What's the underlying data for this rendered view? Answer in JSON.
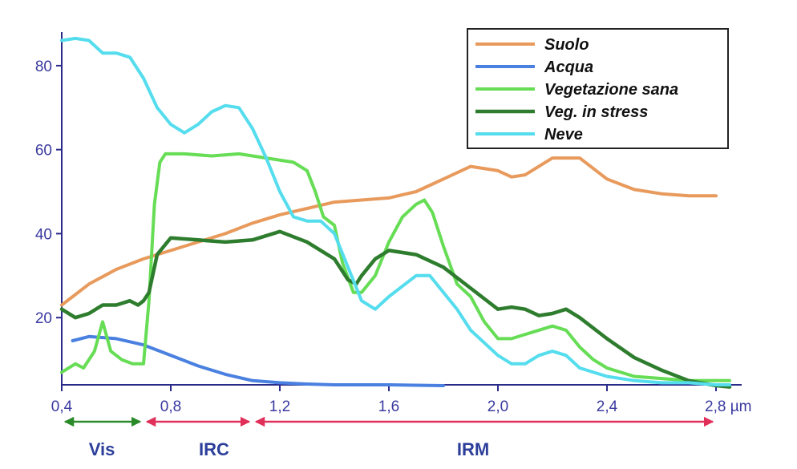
{
  "chart_data": {
    "type": "line",
    "title": "",
    "xlabel": "",
    "ylabel": "",
    "x_unit": "µm",
    "xlim": [
      0.4,
      2.8
    ],
    "ylim": [
      4,
      88
    ],
    "x_ticks": [
      0.4,
      0.8,
      1.2,
      1.6,
      2.0,
      2.4,
      2.8
    ],
    "x_tick_labels": [
      "0,4",
      "0,8",
      "1,2",
      "1,6",
      "2,0",
      "2,4",
      "2,8 µm"
    ],
    "y_ticks": [
      20,
      40,
      60,
      80
    ],
    "y_tick_labels": [
      "20",
      "40",
      "60",
      "80"
    ],
    "grid": false,
    "legend_position": "top-right",
    "series": [
      {
        "name": "Suolo",
        "color": "#e89a5c",
        "points": [
          [
            0.4,
            23
          ],
          [
            0.5,
            28
          ],
          [
            0.6,
            31.5
          ],
          [
            0.7,
            34
          ],
          [
            0.8,
            36
          ],
          [
            0.9,
            38
          ],
          [
            1.0,
            40
          ],
          [
            1.1,
            42.5
          ],
          [
            1.2,
            44.5
          ],
          [
            1.3,
            46
          ],
          [
            1.4,
            47.5
          ],
          [
            1.5,
            48
          ],
          [
            1.6,
            48.5
          ],
          [
            1.7,
            50
          ],
          [
            1.8,
            53
          ],
          [
            1.9,
            56
          ],
          [
            2.0,
            55
          ],
          [
            2.05,
            53.5
          ],
          [
            2.1,
            54
          ],
          [
            2.2,
            58
          ],
          [
            2.3,
            58
          ],
          [
            2.4,
            53
          ],
          [
            2.5,
            50.5
          ],
          [
            2.6,
            49.5
          ],
          [
            2.7,
            49
          ],
          [
            2.8,
            49
          ]
        ]
      },
      {
        "name": "Acqua",
        "color": "#4a80e0",
        "points": [
          [
            0.44,
            14.5
          ],
          [
            0.5,
            15.5
          ],
          [
            0.6,
            15
          ],
          [
            0.7,
            13.5
          ],
          [
            0.8,
            11
          ],
          [
            0.9,
            8.5
          ],
          [
            1.0,
            6.5
          ],
          [
            1.1,
            5
          ],
          [
            1.2,
            4.5
          ],
          [
            1.3,
            4.2
          ],
          [
            1.4,
            4
          ],
          [
            1.6,
            4
          ],
          [
            1.8,
            3.8
          ]
        ]
      },
      {
        "name": "Vegetazione sana",
        "color": "#66dd55",
        "points": [
          [
            0.4,
            7
          ],
          [
            0.45,
            9
          ],
          [
            0.48,
            8
          ],
          [
            0.52,
            12
          ],
          [
            0.55,
            19
          ],
          [
            0.58,
            12
          ],
          [
            0.62,
            10
          ],
          [
            0.66,
            9
          ],
          [
            0.7,
            9
          ],
          [
            0.72,
            24
          ],
          [
            0.74,
            47
          ],
          [
            0.76,
            57
          ],
          [
            0.78,
            59
          ],
          [
            0.85,
            59
          ],
          [
            0.95,
            58.5
          ],
          [
            1.05,
            59
          ],
          [
            1.15,
            58
          ],
          [
            1.25,
            57
          ],
          [
            1.3,
            55
          ],
          [
            1.33,
            50
          ],
          [
            1.36,
            44
          ],
          [
            1.4,
            42
          ],
          [
            1.43,
            33
          ],
          [
            1.47,
            26
          ],
          [
            1.5,
            26
          ],
          [
            1.55,
            30
          ],
          [
            1.6,
            38
          ],
          [
            1.65,
            44
          ],
          [
            1.7,
            47
          ],
          [
            1.73,
            48
          ],
          [
            1.76,
            45
          ],
          [
            1.8,
            37
          ],
          [
            1.85,
            28
          ],
          [
            1.9,
            25
          ],
          [
            1.95,
            19
          ],
          [
            2.0,
            15
          ],
          [
            2.05,
            15
          ],
          [
            2.1,
            16
          ],
          [
            2.15,
            17
          ],
          [
            2.2,
            18
          ],
          [
            2.25,
            17
          ],
          [
            2.3,
            13
          ],
          [
            2.35,
            10
          ],
          [
            2.4,
            8
          ],
          [
            2.5,
            6
          ],
          [
            2.6,
            5.5
          ],
          [
            2.7,
            5
          ],
          [
            2.8,
            5
          ],
          [
            2.85,
            5
          ]
        ]
      },
      {
        "name": "Veg. in stress",
        "color": "#2e7d2e",
        "points": [
          [
            0.4,
            22
          ],
          [
            0.45,
            20
          ],
          [
            0.5,
            21
          ],
          [
            0.55,
            23
          ],
          [
            0.6,
            23
          ],
          [
            0.65,
            24
          ],
          [
            0.68,
            23
          ],
          [
            0.7,
            24
          ],
          [
            0.72,
            26
          ],
          [
            0.75,
            35
          ],
          [
            0.8,
            39
          ],
          [
            0.9,
            38.5
          ],
          [
            1.0,
            38
          ],
          [
            1.1,
            38.5
          ],
          [
            1.2,
            40.5
          ],
          [
            1.3,
            38
          ],
          [
            1.4,
            34
          ],
          [
            1.45,
            29
          ],
          [
            1.48,
            28
          ],
          [
            1.5,
            30
          ],
          [
            1.55,
            34
          ],
          [
            1.6,
            36
          ],
          [
            1.7,
            35
          ],
          [
            1.8,
            32
          ],
          [
            1.9,
            27
          ],
          [
            2.0,
            22
          ],
          [
            2.05,
            22.5
          ],
          [
            2.1,
            22
          ],
          [
            2.15,
            20.5
          ],
          [
            2.2,
            21
          ],
          [
            2.25,
            22
          ],
          [
            2.3,
            20
          ],
          [
            2.4,
            15
          ],
          [
            2.5,
            10.5
          ],
          [
            2.6,
            7.5
          ],
          [
            2.7,
            5
          ],
          [
            2.8,
            3.8
          ],
          [
            2.85,
            3.5
          ]
        ]
      },
      {
        "name": "Neve",
        "color": "#55ddee",
        "points": [
          [
            0.4,
            86
          ],
          [
            0.45,
            86.5
          ],
          [
            0.5,
            86
          ],
          [
            0.55,
            83
          ],
          [
            0.6,
            83
          ],
          [
            0.65,
            82
          ],
          [
            0.7,
            77
          ],
          [
            0.75,
            70
          ],
          [
            0.8,
            66
          ],
          [
            0.85,
            64
          ],
          [
            0.9,
            66
          ],
          [
            0.95,
            69
          ],
          [
            1.0,
            70.5
          ],
          [
            1.05,
            70
          ],
          [
            1.1,
            65
          ],
          [
            1.15,
            58
          ],
          [
            1.2,
            50
          ],
          [
            1.25,
            44
          ],
          [
            1.3,
            43
          ],
          [
            1.35,
            43
          ],
          [
            1.4,
            40
          ],
          [
            1.45,
            32
          ],
          [
            1.5,
            24
          ],
          [
            1.55,
            22
          ],
          [
            1.6,
            25
          ],
          [
            1.7,
            30
          ],
          [
            1.75,
            30
          ],
          [
            1.8,
            26
          ],
          [
            1.85,
            22
          ],
          [
            1.9,
            17
          ],
          [
            2.0,
            11
          ],
          [
            2.05,
            9
          ],
          [
            2.1,
            9
          ],
          [
            2.15,
            11
          ],
          [
            2.2,
            12
          ],
          [
            2.25,
            11
          ],
          [
            2.3,
            8
          ],
          [
            2.4,
            6
          ],
          [
            2.5,
            5
          ],
          [
            2.6,
            4.5
          ],
          [
            2.7,
            4.5
          ],
          [
            2.8,
            4
          ],
          [
            2.85,
            4
          ]
        ]
      }
    ],
    "bands": [
      {
        "label": "Vis",
        "from": 0.4,
        "to": 0.7,
        "color": "#2a8a2a"
      },
      {
        "label": "IRC",
        "from": 0.7,
        "to": 1.1,
        "color": "#e0305a"
      },
      {
        "label": "IRM",
        "from": 1.1,
        "to": 2.8,
        "color": "#e0305a"
      }
    ]
  }
}
